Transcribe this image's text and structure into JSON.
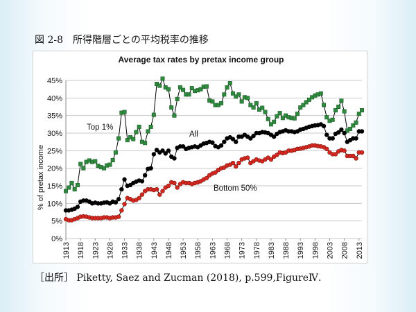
{
  "figure": {
    "caption": "図 2-8　所得階層ごとの平均税率の推移",
    "source": "［出所］ Piketty, Saez and Zucman (2018), p.599,FigureⅣ."
  },
  "chart_data": {
    "type": "line",
    "title": "Average tax rates by pretax income group",
    "ylabel": "% of pretax income",
    "xlabel": "",
    "ylim": [
      0,
      0.45
    ],
    "xlim": [
      1913,
      2014
    ],
    "yticks": [
      0,
      0.05,
      0.1,
      0.15,
      0.2,
      0.25,
      0.3,
      0.35,
      0.4,
      0.45
    ],
    "ytick_labels": [
      "0%",
      "5%",
      "10%",
      "15%",
      "20%",
      "25%",
      "30%",
      "35%",
      "40%",
      "45%"
    ],
    "xticks": [
      1913,
      1918,
      1923,
      1928,
      1933,
      1938,
      1943,
      1948,
      1953,
      1958,
      1963,
      1968,
      1973,
      1978,
      1983,
      1988,
      1993,
      1998,
      2003,
      2008,
      2013
    ],
    "grid": "horizontal",
    "series": [
      {
        "name": "Top 1%",
        "color": "#2e8b3e",
        "marker": "square",
        "x": [
          1913,
          1914,
          1915,
          1916,
          1917,
          1918,
          1919,
          1920,
          1921,
          1922,
          1923,
          1924,
          1925,
          1926,
          1927,
          1928,
          1929,
          1930,
          1931,
          1932,
          1933,
          1934,
          1935,
          1936,
          1937,
          1938,
          1939,
          1940,
          1941,
          1942,
          1943,
          1944,
          1945,
          1946,
          1947,
          1948,
          1949,
          1950,
          1951,
          1952,
          1953,
          1954,
          1955,
          1956,
          1957,
          1958,
          1959,
          1960,
          1961,
          1962,
          1963,
          1964,
          1965,
          1966,
          1967,
          1968,
          1969,
          1970,
          1971,
          1972,
          1973,
          1974,
          1975,
          1976,
          1977,
          1978,
          1979,
          1980,
          1981,
          1982,
          1983,
          1984,
          1985,
          1986,
          1987,
          1988,
          1989,
          1990,
          1991,
          1992,
          1993,
          1994,
          1995,
          1996,
          1997,
          1998,
          1999,
          2000,
          2001,
          2002,
          2003,
          2004,
          2005,
          2006,
          2007,
          2008,
          2009,
          2010,
          2011,
          2012,
          2013,
          2014
        ],
        "y": [
          0.135,
          0.145,
          0.158,
          0.14,
          0.152,
          0.212,
          0.2,
          0.218,
          0.222,
          0.218,
          0.22,
          0.207,
          0.203,
          0.2,
          0.208,
          0.21,
          0.223,
          0.245,
          0.285,
          0.358,
          0.36,
          0.28,
          0.288,
          0.283,
          0.303,
          0.318,
          0.275,
          0.272,
          0.305,
          0.318,
          0.352,
          0.44,
          0.435,
          0.455,
          0.43,
          0.425,
          0.373,
          0.35,
          0.397,
          0.43,
          0.423,
          0.41,
          0.41,
          0.428,
          0.42,
          0.422,
          0.425,
          0.432,
          0.433,
          0.393,
          0.39,
          0.38,
          0.38,
          0.385,
          0.41,
          0.43,
          0.442,
          0.413,
          0.404,
          0.41,
          0.39,
          0.402,
          0.4,
          0.38,
          0.373,
          0.385,
          0.367,
          0.372,
          0.36,
          0.34,
          0.325,
          0.332,
          0.348,
          0.357,
          0.343,
          0.35,
          0.345,
          0.343,
          0.342,
          0.355,
          0.373,
          0.38,
          0.388,
          0.395,
          0.402,
          0.407,
          0.41,
          0.413,
          0.38,
          0.345,
          0.335,
          0.338,
          0.365,
          0.375,
          0.392,
          0.362,
          0.307,
          0.312,
          0.322,
          0.33,
          0.355,
          0.365
        ]
      },
      {
        "name": "All",
        "color": "#000000",
        "marker": "circle",
        "x": [
          1913,
          1914,
          1915,
          1916,
          1917,
          1918,
          1919,
          1920,
          1921,
          1922,
          1923,
          1924,
          1925,
          1926,
          1927,
          1928,
          1929,
          1930,
          1931,
          1932,
          1933,
          1934,
          1935,
          1936,
          1937,
          1938,
          1939,
          1940,
          1941,
          1942,
          1943,
          1944,
          1945,
          1946,
          1947,
          1948,
          1949,
          1950,
          1951,
          1952,
          1953,
          1954,
          1955,
          1956,
          1957,
          1958,
          1959,
          1960,
          1961,
          1962,
          1963,
          1964,
          1965,
          1966,
          1967,
          1968,
          1969,
          1970,
          1971,
          1972,
          1973,
          1974,
          1975,
          1976,
          1977,
          1978,
          1979,
          1980,
          1981,
          1982,
          1983,
          1984,
          1985,
          1986,
          1987,
          1988,
          1989,
          1990,
          1991,
          1992,
          1993,
          1994,
          1995,
          1996,
          1997,
          1998,
          1999,
          2000,
          2001,
          2002,
          2003,
          2004,
          2005,
          2006,
          2007,
          2008,
          2009,
          2010,
          2011,
          2012,
          2013,
          2014
        ],
        "y": [
          0.08,
          0.08,
          0.082,
          0.085,
          0.09,
          0.105,
          0.108,
          0.108,
          0.105,
          0.1,
          0.102,
          0.1,
          0.1,
          0.102,
          0.103,
          0.1,
          0.105,
          0.103,
          0.112,
          0.14,
          0.168,
          0.15,
          0.152,
          0.158,
          0.162,
          0.165,
          0.163,
          0.18,
          0.198,
          0.2,
          0.24,
          0.252,
          0.245,
          0.25,
          0.242,
          0.25,
          0.233,
          0.228,
          0.258,
          0.262,
          0.262,
          0.255,
          0.258,
          0.26,
          0.262,
          0.26,
          0.265,
          0.27,
          0.272,
          0.275,
          0.273,
          0.263,
          0.26,
          0.265,
          0.275,
          0.285,
          0.288,
          0.283,
          0.275,
          0.29,
          0.29,
          0.295,
          0.29,
          0.285,
          0.292,
          0.3,
          0.3,
          0.303,
          0.302,
          0.3,
          0.295,
          0.29,
          0.298,
          0.303,
          0.305,
          0.308,
          0.305,
          0.305,
          0.303,
          0.305,
          0.31,
          0.312,
          0.315,
          0.318,
          0.32,
          0.322,
          0.323,
          0.325,
          0.32,
          0.295,
          0.285,
          0.285,
          0.298,
          0.302,
          0.31,
          0.3,
          0.275,
          0.28,
          0.285,
          0.285,
          0.305,
          0.305
        ]
      },
      {
        "name": "Bottom 50%",
        "color": "#d7281f",
        "marker": "circle",
        "x": [
          1913,
          1914,
          1915,
          1916,
          1917,
          1918,
          1919,
          1920,
          1921,
          1922,
          1923,
          1924,
          1925,
          1926,
          1927,
          1928,
          1929,
          1930,
          1931,
          1932,
          1933,
          1934,
          1935,
          1936,
          1937,
          1938,
          1939,
          1940,
          1941,
          1942,
          1943,
          1944,
          1945,
          1946,
          1947,
          1948,
          1949,
          1950,
          1951,
          1952,
          1953,
          1954,
          1955,
          1956,
          1957,
          1958,
          1959,
          1960,
          1961,
          1962,
          1963,
          1964,
          1965,
          1966,
          1967,
          1968,
          1969,
          1970,
          1971,
          1972,
          1973,
          1974,
          1975,
          1976,
          1977,
          1978,
          1979,
          1980,
          1981,
          1982,
          1983,
          1984,
          1985,
          1986,
          1987,
          1988,
          1989,
          1990,
          1991,
          1992,
          1993,
          1994,
          1995,
          1996,
          1997,
          1998,
          1999,
          2000,
          2001,
          2002,
          2003,
          2004,
          2005,
          2006,
          2007,
          2008,
          2009,
          2010,
          2011,
          2012,
          2013,
          2014
        ],
        "y": [
          0.055,
          0.052,
          0.052,
          0.055,
          0.058,
          0.062,
          0.063,
          0.062,
          0.06,
          0.058,
          0.058,
          0.058,
          0.058,
          0.06,
          0.06,
          0.058,
          0.06,
          0.06,
          0.062,
          0.08,
          0.098,
          0.115,
          0.112,
          0.108,
          0.11,
          0.115,
          0.125,
          0.135,
          0.14,
          0.14,
          0.138,
          0.14,
          0.125,
          0.135,
          0.145,
          0.15,
          0.16,
          0.158,
          0.145,
          0.155,
          0.16,
          0.158,
          0.158,
          0.155,
          0.158,
          0.16,
          0.163,
          0.168,
          0.172,
          0.18,
          0.185,
          0.188,
          0.195,
          0.2,
          0.202,
          0.208,
          0.21,
          0.215,
          0.205,
          0.215,
          0.225,
          0.228,
          0.23,
          0.215,
          0.22,
          0.225,
          0.222,
          0.22,
          0.225,
          0.23,
          0.225,
          0.233,
          0.238,
          0.245,
          0.243,
          0.245,
          0.25,
          0.25,
          0.252,
          0.255,
          0.256,
          0.258,
          0.26,
          0.262,
          0.265,
          0.265,
          0.263,
          0.262,
          0.26,
          0.255,
          0.245,
          0.24,
          0.24,
          0.248,
          0.252,
          0.25,
          0.235,
          0.235,
          0.235,
          0.228,
          0.245,
          0.245
        ]
      }
    ],
    "annotations": [
      {
        "text": "Top 1%",
        "series": "Top 1%"
      },
      {
        "text": "All",
        "series": "All"
      },
      {
        "text": "Bottom 50%",
        "series": "Bottom 50%"
      }
    ]
  }
}
